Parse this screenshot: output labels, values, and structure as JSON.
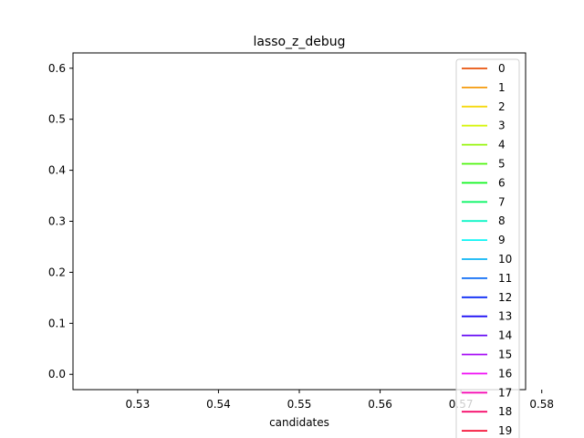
{
  "chart_data": {
    "type": "line",
    "title": "lasso_z_debug",
    "xlabel": "candidates",
    "ylabel": "",
    "xlim": [
      0.522,
      0.578
    ],
    "ylim": [
      -0.03,
      0.63
    ],
    "x_ticks": [
      "0.53",
      "0.54",
      "0.55",
      "0.56",
      "0.57",
      "0.58"
    ],
    "y_ticks": [
      "0.0",
      "0.1",
      "0.2",
      "0.3",
      "0.4",
      "0.5",
      "0.6"
    ],
    "grid": false,
    "legend_position": "top-right",
    "series": [
      {
        "name": "0",
        "color": "#e8530c",
        "x": [],
        "y": []
      },
      {
        "name": "1",
        "color": "#f59b0d",
        "x": [],
        "y": []
      },
      {
        "name": "2",
        "color": "#f5d80d",
        "x": [],
        "y": []
      },
      {
        "name": "3",
        "color": "#d6f50d",
        "x": [],
        "y": []
      },
      {
        "name": "4",
        "color": "#97f50d",
        "x": [],
        "y": []
      },
      {
        "name": "5",
        "color": "#4ef50d",
        "x": [],
        "y": []
      },
      {
        "name": "6",
        "color": "#0df51c",
        "x": [],
        "y": []
      },
      {
        "name": "7",
        "color": "#0df567",
        "x": [],
        "y": []
      },
      {
        "name": "8",
        "color": "#0df5c6",
        "x": [],
        "y": []
      },
      {
        "name": "9",
        "color": "#0df5f5",
        "x": [],
        "y": []
      },
      {
        "name": "10",
        "color": "#0db5f5",
        "x": [],
        "y": []
      },
      {
        "name": "11",
        "color": "#0d6cf5",
        "x": [],
        "y": []
      },
      {
        "name": "12",
        "color": "#0d2cf5",
        "x": [],
        "y": []
      },
      {
        "name": "13",
        "color": "#1c0df5",
        "x": [],
        "y": []
      },
      {
        "name": "14",
        "color": "#670df5",
        "x": [],
        "y": []
      },
      {
        "name": "15",
        "color": "#a70df5",
        "x": [],
        "y": []
      },
      {
        "name": "16",
        "color": "#f00df5",
        "x": [],
        "y": []
      },
      {
        "name": "17",
        "color": "#f50db5",
        "x": [],
        "y": []
      },
      {
        "name": "18",
        "color": "#f50d6c",
        "x": [],
        "y": []
      },
      {
        "name": "19",
        "color": "#f50d33",
        "x": [],
        "y": []
      }
    ]
  }
}
